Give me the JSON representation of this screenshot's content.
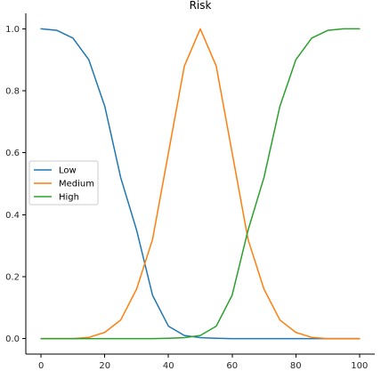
{
  "chart_data": {
    "type": "line",
    "title": "Risk",
    "xlabel": "",
    "ylabel": "",
    "xlim": [
      -4.8,
      104.8
    ],
    "ylim": [
      -0.05,
      1.05
    ],
    "xticks": [
      0,
      20,
      40,
      60,
      80,
      100
    ],
    "xtick_labels": [
      "0",
      "20",
      "40",
      "60",
      "80",
      "100"
    ],
    "yticks": [
      0.0,
      0.2,
      0.4,
      0.6,
      0.8,
      1.0
    ],
    "ytick_labels": [
      "0.0",
      "0.2",
      "0.4",
      "0.6",
      "0.8",
      "1.0"
    ],
    "grid": false,
    "legend_position": "center-left",
    "series": [
      {
        "name": "Low",
        "color": "#1f77b4",
        "x": [
          0,
          5,
          10,
          15,
          20,
          25,
          30,
          35,
          40,
          45,
          50,
          55,
          60,
          65,
          70,
          75,
          80,
          85,
          90,
          95,
          100
        ],
        "y": [
          1.0,
          0.995,
          0.97,
          0.9,
          0.75,
          0.52,
          0.35,
          0.14,
          0.04,
          0.01,
          0.003,
          0.001,
          0.0,
          0.0,
          0.0,
          0.0,
          0.0,
          0.0,
          0.0,
          0.0,
          0.0
        ]
      },
      {
        "name": "Medium",
        "color": "#ff7f0e",
        "x": [
          0,
          5,
          10,
          15,
          20,
          25,
          30,
          35,
          40,
          45,
          50,
          55,
          60,
          65,
          70,
          75,
          80,
          85,
          90,
          95,
          100
        ],
        "y": [
          0.0,
          0.0,
          0.0,
          0.004,
          0.02,
          0.06,
          0.16,
          0.32,
          0.6,
          0.88,
          1.0,
          0.88,
          0.6,
          0.32,
          0.16,
          0.06,
          0.02,
          0.004,
          0.0,
          0.0,
          0.0
        ]
      },
      {
        "name": "High",
        "color": "#2ca02c",
        "x": [
          0,
          5,
          10,
          15,
          20,
          25,
          30,
          35,
          40,
          45,
          50,
          55,
          60,
          65,
          70,
          75,
          80,
          85,
          90,
          95,
          100
        ],
        "y": [
          0.0,
          0.0,
          0.0,
          0.0,
          0.0,
          0.0,
          0.0,
          0.0,
          0.001,
          0.003,
          0.01,
          0.04,
          0.14,
          0.35,
          0.52,
          0.75,
          0.9,
          0.97,
          0.995,
          1.0,
          1.0
        ]
      }
    ]
  }
}
